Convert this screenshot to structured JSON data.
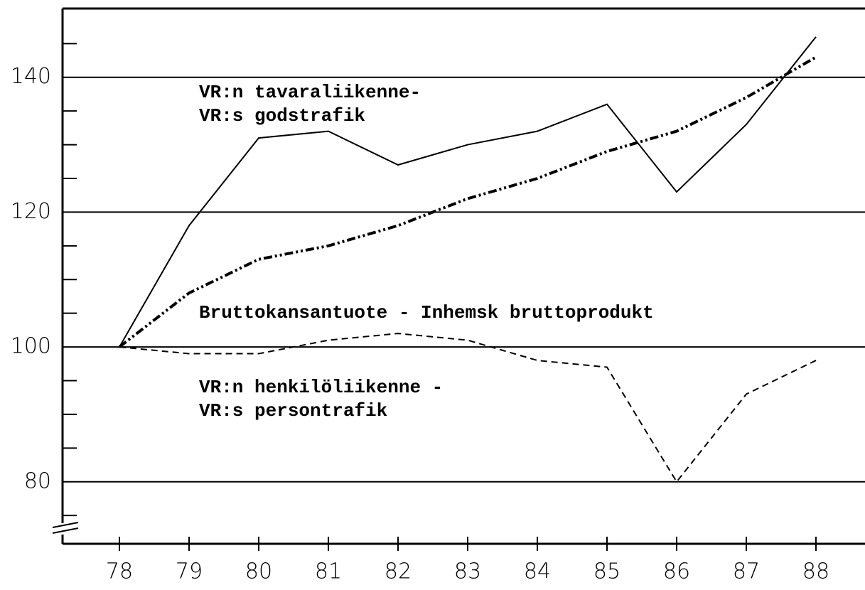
{
  "chart_data": {
    "type": "line",
    "categories": [
      "78",
      "79",
      "80",
      "81",
      "82",
      "83",
      "84",
      "85",
      "86",
      "87",
      "88"
    ],
    "series": [
      {
        "name": [
          "VR:n tavaraliikenne-",
          "VR:s godstrafik"
        ],
        "style": "solid",
        "color": "#000000",
        "values": [
          100,
          118,
          131,
          132,
          127,
          130,
          132,
          136,
          123,
          133,
          146
        ]
      },
      {
        "name": [
          "Bruttokansantuote - Inhemsk bruttoprodukt"
        ],
        "style": "dashdot",
        "color": "#000000",
        "values": [
          100,
          108,
          113,
          115,
          118,
          122,
          125,
          129,
          132,
          137,
          143
        ]
      },
      {
        "name": [
          "VR:n henkilöliikenne -",
          "VR:s persontrafik"
        ],
        "style": "dashed",
        "color": "#000000",
        "values": [
          100,
          99,
          99,
          101,
          102,
          101,
          98,
          97,
          80,
          93,
          98
        ]
      }
    ],
    "ylim": [
      70.8,
      150.2
    ],
    "yticks": [
      80,
      100,
      120,
      140
    ],
    "minor_yticks": [
      75,
      85,
      90,
      95,
      105,
      110,
      115,
      125,
      130,
      135,
      145
    ],
    "grid": true
  }
}
